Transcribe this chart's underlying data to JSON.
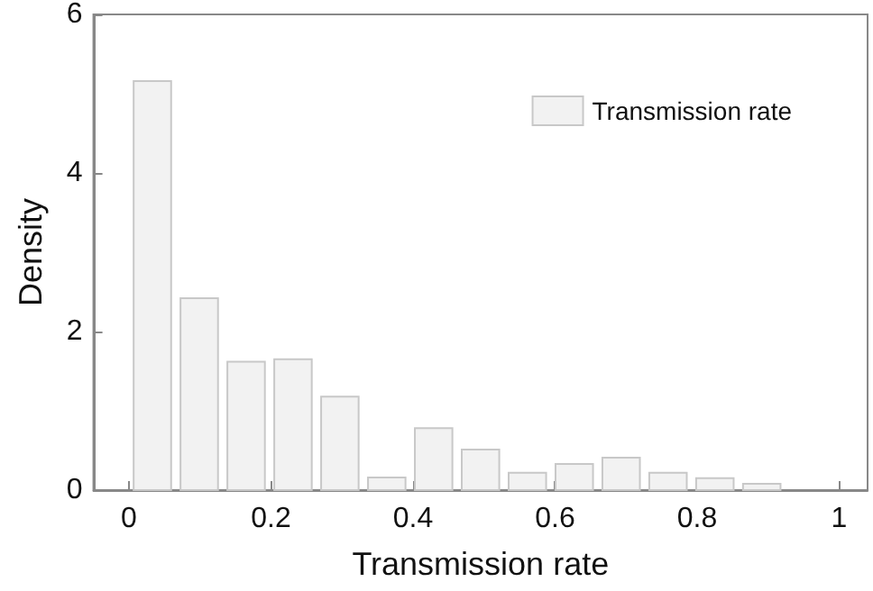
{
  "chart_data": {
    "type": "histogram",
    "xlabel": "Transmission rate",
    "ylabel": "Density",
    "bins": [
      0,
      0.066,
      0.132,
      0.198,
      0.264,
      0.33,
      0.396,
      0.462,
      0.528,
      0.594,
      0.66,
      0.726,
      0.792,
      0.858,
      0.924
    ],
    "series": [
      {
        "name": "Transmission rate",
        "color": "#f2f2f2",
        "values": [
          5.16,
          2.42,
          1.62,
          1.65,
          1.18,
          0.16,
          0.78,
          0.51,
          0.22,
          0.33,
          0.41,
          0.22,
          0.15,
          0.08
        ]
      }
    ],
    "xlim": [
      -0.05,
      1.04
    ],
    "xticks": [
      0,
      0.2,
      0.4,
      0.6,
      0.8,
      1
    ],
    "ylim": [
      0,
      6
    ],
    "yticks": [
      0,
      2,
      4,
      6
    ],
    "grid": false,
    "legend": "top right"
  }
}
